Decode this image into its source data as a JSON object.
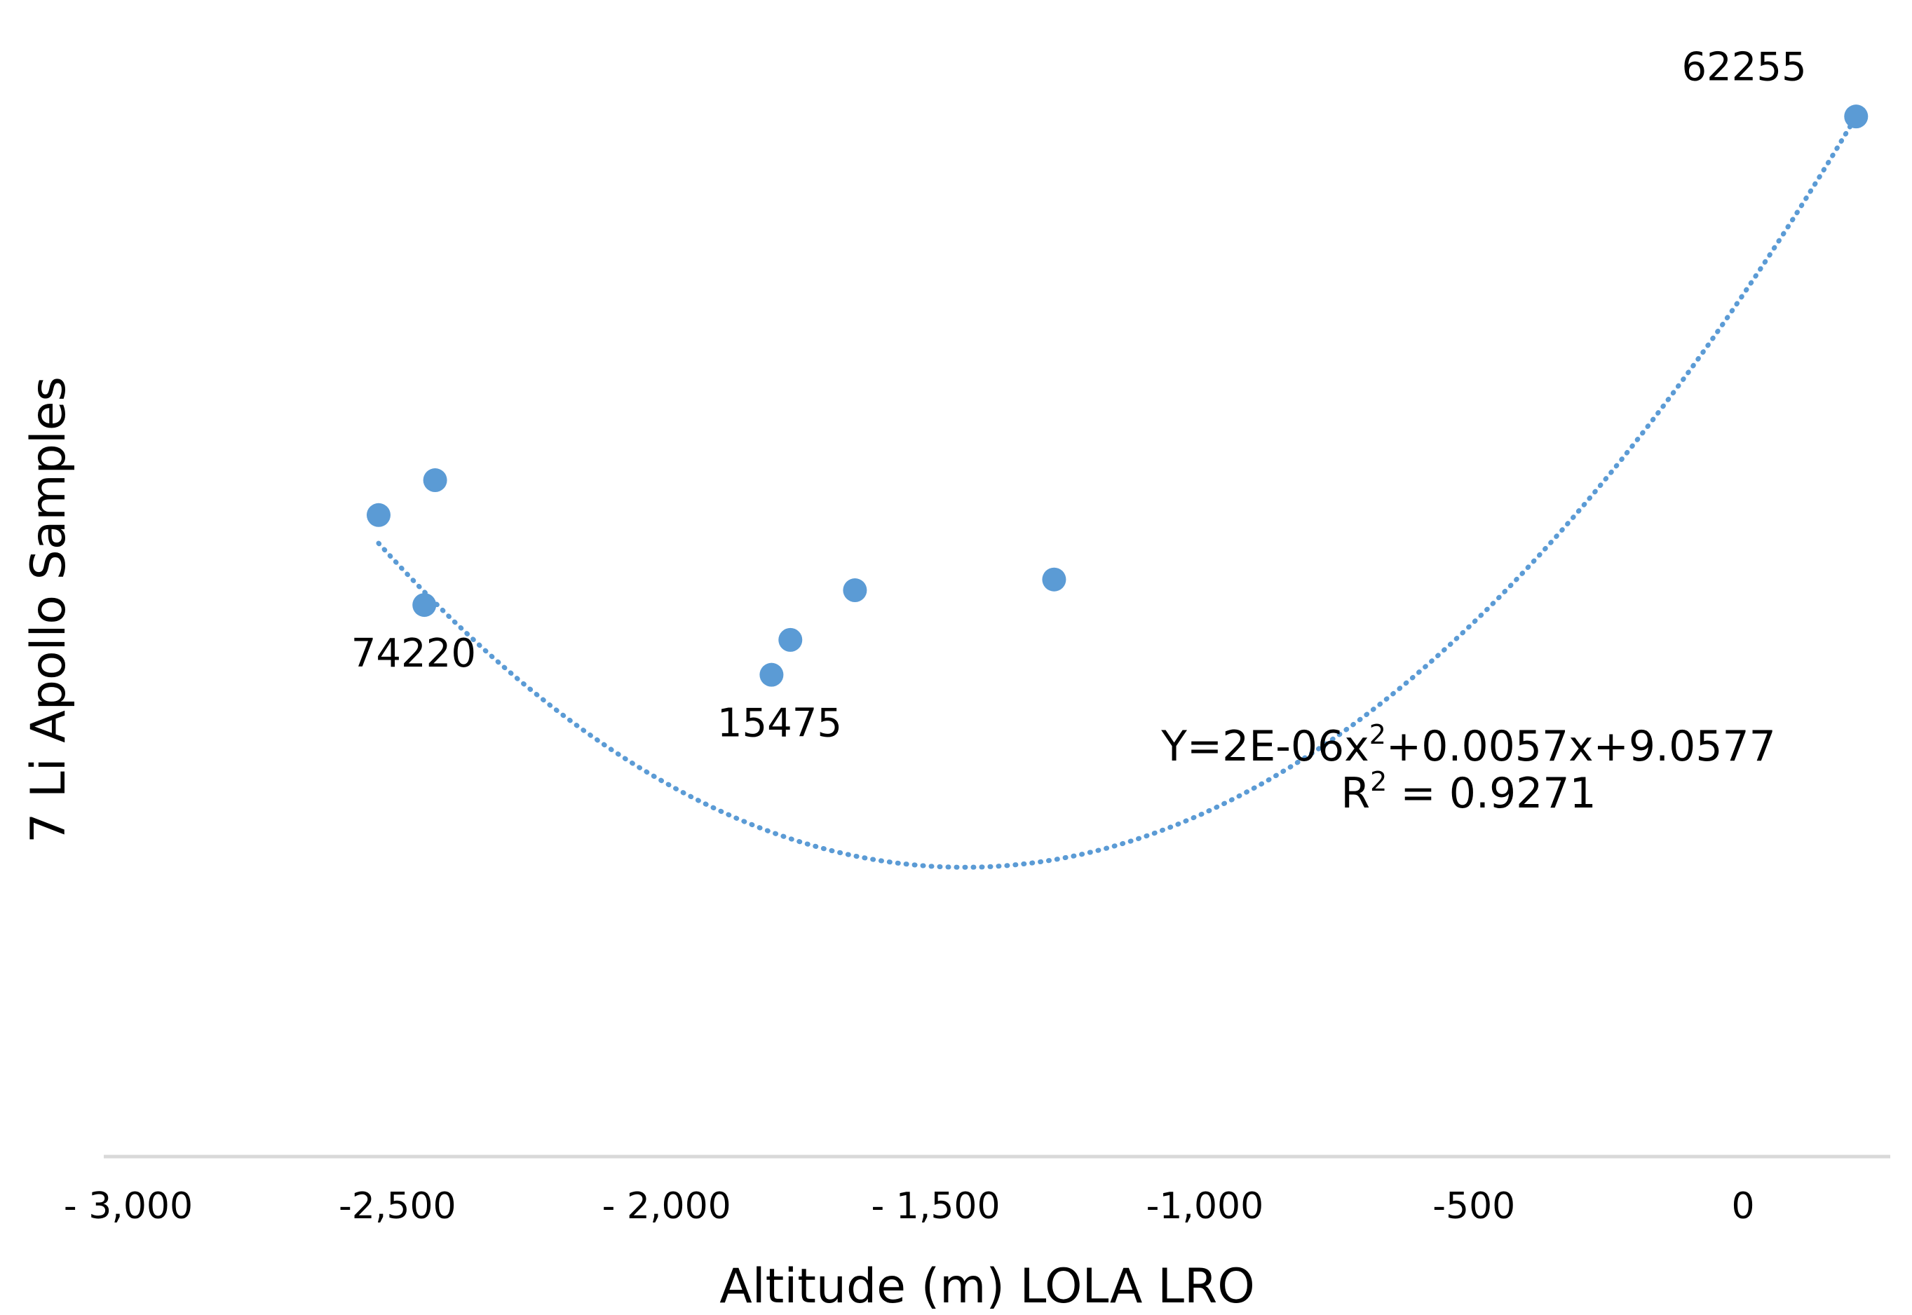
{
  "chart_data": {
    "type": "scatter",
    "title": "",
    "xlabel": "Altitude (m) LOLA LRO",
    "ylabel": "7 Li Apollo Samples",
    "xlim": [
      -3000,
      250
    ],
    "ylim": [
      -40,
      42
    ],
    "x_ticks": [
      {
        "value": -3000,
        "label": "- 3,000"
      },
      {
        "value": -2500,
        "label": "-2,500"
      },
      {
        "value": -2000,
        "label": "- 2,000"
      },
      {
        "value": -1500,
        "label": "- 1,500"
      },
      {
        "value": -1000,
        "label": "-1,000"
      },
      {
        "value": -500,
        "label": "-500"
      },
      {
        "value": 0,
        "label": "0"
      }
    ],
    "y_ticks": [],
    "grid": false,
    "legend": null,
    "series": [
      {
        "name": "7 Li Apollo Samples",
        "color": "#5B9BD5",
        "points": [
          {
            "x": 210,
            "y": 37.5
          },
          {
            "x": -2430,
            "y": 10.4
          },
          {
            "x": -2535,
            "y": 7.8
          },
          {
            "x": -2450,
            "y": 1.1
          },
          {
            "x": -1280,
            "y": 3.0
          },
          {
            "x": -1650,
            "y": 2.2
          },
          {
            "x": -1770,
            "y": -1.5
          },
          {
            "x": -1805,
            "y": -4.1
          }
        ]
      }
    ],
    "trendline": {
      "type": "polynomial",
      "order": 2,
      "color": "#5B9BD5",
      "style": "dotted",
      "x_range": [
        -2535,
        210
      ],
      "control_y": [
        5.7,
        -16.8,
        37.5
      ]
    },
    "point_labels": [
      {
        "text": "62255",
        "x": 2,
        "y": 40.2
      },
      {
        "text": "74220",
        "x": -2470,
        "y": -3.5
      },
      {
        "text": "15475",
        "x": -1790,
        "y": -8.7
      }
    ],
    "annotations": {
      "equation": {
        "prefix": "Y=2E-06x",
        "sup1": "2",
        "suffix": "+0.0057x+9.0577",
        "x": -510,
        "y": -10.5
      },
      "r_squared": {
        "prefix": "R",
        "sup": "2",
        "suffix": " = 0.9271",
        "x": -510,
        "y": -14.0
      }
    }
  }
}
